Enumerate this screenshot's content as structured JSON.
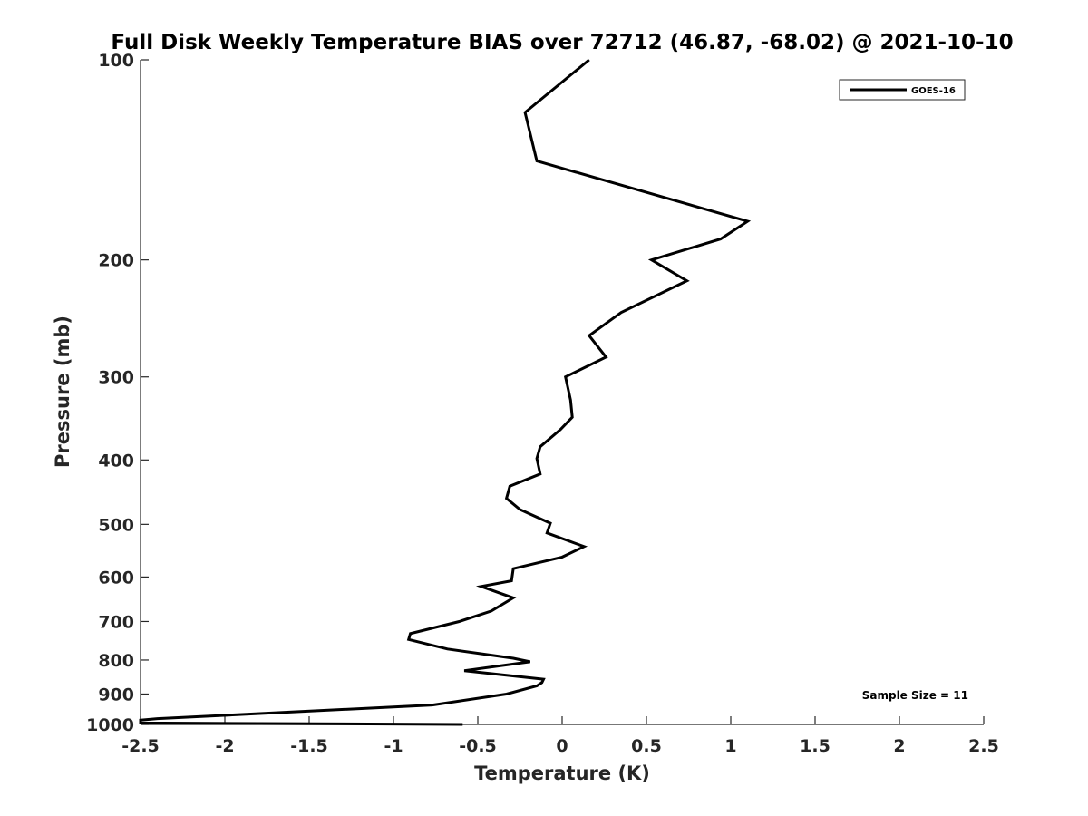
{
  "chart_data": {
    "type": "line",
    "title": "Full Disk Weekly Temperature BIAS over 72712 (46.87, -68.02) @ 2021-10-10",
    "xlabel": "Temperature (K)",
    "ylabel": "Pressure (mb)",
    "xlim": [
      -2.5,
      2.5
    ],
    "ylim": [
      100,
      1000
    ],
    "y_scale": "log",
    "y_reversed": true,
    "x_ticks": [
      "-2.5",
      "-2",
      "-1.5",
      "-1",
      "-0.5",
      "0",
      "0.5",
      "1",
      "1.5",
      "2",
      "2.5"
    ],
    "y_ticks": [
      "100",
      "200",
      "300",
      "400",
      "500",
      "600",
      "700",
      "800",
      "900",
      "1000"
    ],
    "grid": false,
    "legend_position": "top-right",
    "series": [
      {
        "name": "GOES-16",
        "color": "#000000",
        "points": [
          [
            0.16,
            100
          ],
          [
            -0.22,
            120
          ],
          [
            -0.15,
            142
          ],
          [
            1.1,
            175
          ],
          [
            0.94,
            186
          ],
          [
            0.53,
            200
          ],
          [
            0.74,
            215
          ],
          [
            0.35,
            240
          ],
          [
            0.16,
            260
          ],
          [
            0.26,
            280
          ],
          [
            0.02,
            300
          ],
          [
            0.05,
            325
          ],
          [
            0.06,
            345
          ],
          [
            -0.01,
            360
          ],
          [
            -0.13,
            382
          ],
          [
            -0.15,
            398
          ],
          [
            -0.13,
            420
          ],
          [
            -0.31,
            438
          ],
          [
            -0.33,
            457
          ],
          [
            -0.25,
            475
          ],
          [
            -0.07,
            498
          ],
          [
            -0.09,
            515
          ],
          [
            0.13,
            540
          ],
          [
            0.0,
            560
          ],
          [
            -0.29,
            583
          ],
          [
            -0.3,
            608
          ],
          [
            -0.48,
            620
          ],
          [
            -0.29,
            645
          ],
          [
            -0.42,
            675
          ],
          [
            -0.61,
            700
          ],
          [
            -0.9,
            730
          ],
          [
            -0.91,
            745
          ],
          [
            -0.68,
            770
          ],
          [
            -0.29,
            795
          ],
          [
            -0.19,
            805
          ],
          [
            -0.58,
            830
          ],
          [
            -0.11,
            855
          ],
          [
            -0.12,
            865
          ],
          [
            -0.15,
            875
          ],
          [
            -0.33,
            900
          ],
          [
            -0.77,
            935
          ],
          [
            -2.4,
            980
          ],
          [
            -2.5,
            985
          ],
          [
            -2.5,
            995
          ],
          [
            -0.59,
            1005
          ]
        ]
      }
    ],
    "annotation": "Sample Size = 11"
  }
}
